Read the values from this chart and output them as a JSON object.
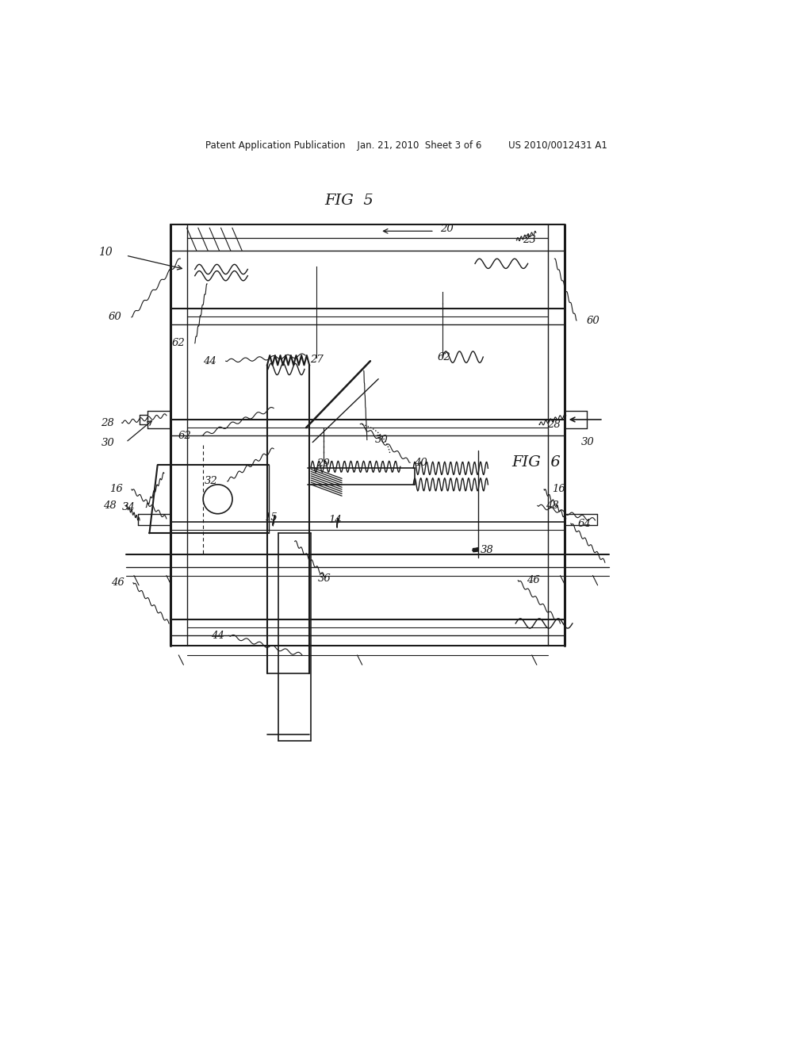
{
  "bg_color": "#ffffff",
  "line_color": "#1a1a1a",
  "text_color": "#1a1a1a",
  "header_text": "Patent Application Publication    Jan. 21, 2010  Sheet 3 of 6         US 2010/0012431 A1",
  "fig5_title": "FIG  5",
  "fig6_title": "FIG  6"
}
